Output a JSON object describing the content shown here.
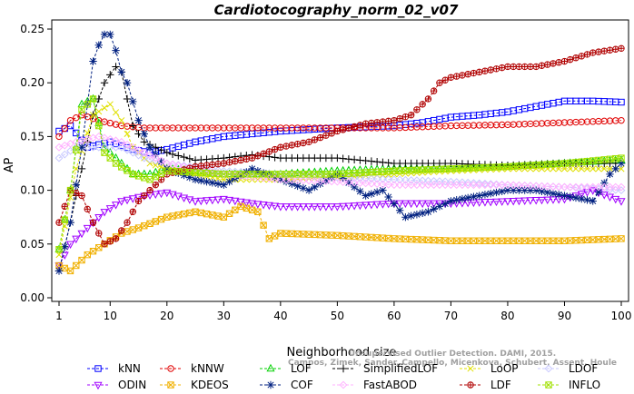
{
  "chart_data": {
    "type": "line",
    "title": "Cardiotocography_norm_02_v07",
    "xlabel": "Neighborhood size",
    "ylabel": "AP",
    "xlim": [
      1,
      100
    ],
    "ylim": [
      0.0,
      0.25
    ],
    "xticks": [
      "1",
      "10",
      "20",
      "30",
      "40",
      "50",
      "60",
      "70",
      "80",
      "90",
      "100"
    ],
    "yticks": [
      "0.00",
      "0.05",
      "0.10",
      "0.15",
      "0.20",
      "0.25"
    ],
    "grid": false,
    "legend_position": "bottom",
    "watermark": [
      "Campos, Zimek, Sander, Campello, Micenkova, Schubert, Assent, Houle",
      "Unsupervised Outlier Detection. DAMI, 2015."
    ],
    "series": [
      {
        "name": "kNN",
        "color": "#0000ff",
        "marker": "square",
        "points": [
          [
            1,
            0.155
          ],
          [
            3,
            0.16
          ],
          [
            6,
            0.14
          ],
          [
            10,
            0.145
          ],
          [
            14,
            0.138
          ],
          [
            17,
            0.135
          ],
          [
            20,
            0.138
          ],
          [
            25,
            0.145
          ],
          [
            30,
            0.15
          ],
          [
            40,
            0.155
          ],
          [
            50,
            0.158
          ],
          [
            60,
            0.16
          ],
          [
            65,
            0.163
          ],
          [
            70,
            0.168
          ],
          [
            75,
            0.17
          ],
          [
            80,
            0.173
          ],
          [
            85,
            0.178
          ],
          [
            90,
            0.183
          ],
          [
            95,
            0.183
          ],
          [
            100,
            0.182
          ]
        ]
      },
      {
        "name": "kNNW",
        "color": "#e00000",
        "marker": "circle",
        "points": [
          [
            1,
            0.15
          ],
          [
            3,
            0.165
          ],
          [
            5,
            0.17
          ],
          [
            8,
            0.165
          ],
          [
            12,
            0.16
          ],
          [
            16,
            0.158
          ],
          [
            20,
            0.158
          ],
          [
            30,
            0.158
          ],
          [
            40,
            0.158
          ],
          [
            50,
            0.158
          ],
          [
            60,
            0.158
          ],
          [
            70,
            0.16
          ],
          [
            80,
            0.161
          ],
          [
            90,
            0.163
          ],
          [
            100,
            0.165
          ]
        ]
      },
      {
        "name": "LOF",
        "color": "#00d000",
        "marker": "triangle",
        "points": [
          [
            1,
            0.045
          ],
          [
            3,
            0.1
          ],
          [
            5,
            0.18
          ],
          [
            7,
            0.185
          ],
          [
            9,
            0.14
          ],
          [
            11,
            0.13
          ],
          [
            14,
            0.115
          ],
          [
            17,
            0.115
          ],
          [
            20,
            0.12
          ],
          [
            25,
            0.118
          ],
          [
            30,
            0.115
          ],
          [
            40,
            0.115
          ],
          [
            50,
            0.118
          ],
          [
            60,
            0.12
          ],
          [
            70,
            0.12
          ],
          [
            80,
            0.122
          ],
          [
            90,
            0.125
          ],
          [
            100,
            0.128
          ]
        ]
      },
      {
        "name": "SimplifiedLOF",
        "color": "#000000",
        "marker": "plus",
        "points": [
          [
            1,
            0.025
          ],
          [
            3,
            0.07
          ],
          [
            5,
            0.12
          ],
          [
            7,
            0.17
          ],
          [
            9,
            0.2
          ],
          [
            11,
            0.215
          ],
          [
            12,
            0.21
          ],
          [
            14,
            0.16
          ],
          [
            16,
            0.145
          ],
          [
            18,
            0.14
          ],
          [
            20,
            0.135
          ],
          [
            25,
            0.128
          ],
          [
            30,
            0.13
          ],
          [
            35,
            0.133
          ],
          [
            40,
            0.13
          ],
          [
            50,
            0.13
          ],
          [
            60,
            0.125
          ],
          [
            70,
            0.125
          ],
          [
            80,
            0.123
          ],
          [
            90,
            0.125
          ],
          [
            100,
            0.125
          ]
        ]
      },
      {
        "name": "LoOP",
        "color": "#e0e000",
        "marker": "cross",
        "points": [
          [
            1,
            0.04
          ],
          [
            4,
            0.12
          ],
          [
            7,
            0.17
          ],
          [
            10,
            0.18
          ],
          [
            12,
            0.165
          ],
          [
            14,
            0.14
          ],
          [
            17,
            0.125
          ],
          [
            20,
            0.12
          ],
          [
            30,
            0.11
          ],
          [
            40,
            0.11
          ],
          [
            50,
            0.112
          ],
          [
            60,
            0.115
          ],
          [
            70,
            0.118
          ],
          [
            80,
            0.12
          ],
          [
            90,
            0.12
          ],
          [
            100,
            0.12
          ]
        ]
      },
      {
        "name": "LDOF",
        "color": "#c8c8ff",
        "marker": "diamond",
        "points": [
          [
            1,
            0.13
          ],
          [
            4,
            0.14
          ],
          [
            8,
            0.14
          ],
          [
            12,
            0.14
          ],
          [
            16,
            0.13
          ],
          [
            20,
            0.125
          ],
          [
            30,
            0.118
          ],
          [
            40,
            0.115
          ],
          [
            50,
            0.112
          ],
          [
            60,
            0.11
          ],
          [
            70,
            0.108
          ],
          [
            80,
            0.105
          ],
          [
            90,
            0.103
          ],
          [
            100,
            0.1
          ]
        ]
      },
      {
        "name": "ODIN",
        "color": "#a000ff",
        "marker": "triangle-down",
        "points": [
          [
            1,
            0.03
          ],
          [
            3,
            0.05
          ],
          [
            6,
            0.065
          ],
          [
            9,
            0.08
          ],
          [
            12,
            0.09
          ],
          [
            16,
            0.095
          ],
          [
            20,
            0.098
          ],
          [
            25,
            0.09
          ],
          [
            30,
            0.092
          ],
          [
            35,
            0.088
          ],
          [
            40,
            0.085
          ],
          [
            50,
            0.085
          ],
          [
            60,
            0.088
          ],
          [
            70,
            0.088
          ],
          [
            80,
            0.09
          ],
          [
            90,
            0.092
          ],
          [
            95,
            0.1
          ],
          [
            100,
            0.09
          ]
        ]
      },
      {
        "name": "KDEOS",
        "color": "#f0b000",
        "marker": "square-x",
        "points": [
          [
            1,
            0.03
          ],
          [
            3,
            0.025
          ],
          [
            6,
            0.04
          ],
          [
            9,
            0.05
          ],
          [
            12,
            0.06
          ],
          [
            15,
            0.065
          ],
          [
            20,
            0.075
          ],
          [
            25,
            0.08
          ],
          [
            30,
            0.075
          ],
          [
            33,
            0.085
          ],
          [
            36,
            0.08
          ],
          [
            38,
            0.055
          ],
          [
            40,
            0.06
          ],
          [
            50,
            0.058
          ],
          [
            60,
            0.055
          ],
          [
            70,
            0.053
          ],
          [
            80,
            0.053
          ],
          [
            90,
            0.053
          ],
          [
            100,
            0.055
          ]
        ]
      },
      {
        "name": "COF",
        "color": "#002080",
        "marker": "asterisk",
        "points": [
          [
            1,
            0.025
          ],
          [
            3,
            0.07
          ],
          [
            5,
            0.14
          ],
          [
            7,
            0.22
          ],
          [
            8,
            0.235
          ],
          [
            9,
            0.245
          ],
          [
            10,
            0.245
          ],
          [
            11,
            0.23
          ],
          [
            12,
            0.21
          ],
          [
            13,
            0.2
          ],
          [
            15,
            0.165
          ],
          [
            17,
            0.14
          ],
          [
            20,
            0.12
          ],
          [
            25,
            0.11
          ],
          [
            30,
            0.105
          ],
          [
            35,
            0.12
          ],
          [
            40,
            0.11
          ],
          [
            45,
            0.1
          ],
          [
            50,
            0.115
          ],
          [
            55,
            0.095
          ],
          [
            58,
            0.1
          ],
          [
            62,
            0.075
          ],
          [
            66,
            0.08
          ],
          [
            70,
            0.09
          ],
          [
            75,
            0.095
          ],
          [
            80,
            0.1
          ],
          [
            85,
            0.1
          ],
          [
            90,
            0.095
          ],
          [
            95,
            0.09
          ],
          [
            98,
            0.115
          ],
          [
            100,
            0.125
          ]
        ]
      },
      {
        "name": "FastABOD",
        "color": "#ffb0ff",
        "marker": "diamond",
        "points": [
          [
            1,
            0.14
          ],
          [
            4,
            0.145
          ],
          [
            8,
            0.15
          ],
          [
            12,
            0.145
          ],
          [
            16,
            0.135
          ],
          [
            20,
            0.125
          ],
          [
            30,
            0.115
          ],
          [
            40,
            0.11
          ],
          [
            50,
            0.108
          ],
          [
            60,
            0.105
          ],
          [
            70,
            0.105
          ],
          [
            80,
            0.105
          ],
          [
            90,
            0.103
          ],
          [
            100,
            0.103
          ]
        ]
      },
      {
        "name": "LDF",
        "color": "#b00000",
        "marker": "circle-plus",
        "points": [
          [
            1,
            0.07
          ],
          [
            3,
            0.1
          ],
          [
            5,
            0.095
          ],
          [
            7,
            0.07
          ],
          [
            9,
            0.05
          ],
          [
            11,
            0.055
          ],
          [
            13,
            0.07
          ],
          [
            15,
            0.09
          ],
          [
            17,
            0.1
          ],
          [
            20,
            0.115
          ],
          [
            25,
            0.122
          ],
          [
            30,
            0.125
          ],
          [
            35,
            0.13
          ],
          [
            40,
            0.14
          ],
          [
            45,
            0.145
          ],
          [
            50,
            0.155
          ],
          [
            55,
            0.162
          ],
          [
            60,
            0.165
          ],
          [
            63,
            0.17
          ],
          [
            66,
            0.185
          ],
          [
            68,
            0.2
          ],
          [
            70,
            0.205
          ],
          [
            75,
            0.21
          ],
          [
            80,
            0.215
          ],
          [
            85,
            0.215
          ],
          [
            90,
            0.22
          ],
          [
            95,
            0.228
          ],
          [
            100,
            0.232
          ]
        ]
      },
      {
        "name": "INFLO",
        "color": "#a0e000",
        "marker": "square-x",
        "points": [
          [
            1,
            0.045
          ],
          [
            3,
            0.1
          ],
          [
            5,
            0.175
          ],
          [
            7,
            0.185
          ],
          [
            9,
            0.135
          ],
          [
            11,
            0.125
          ],
          [
            14,
            0.115
          ],
          [
            17,
            0.11
          ],
          [
            20,
            0.118
          ],
          [
            30,
            0.115
          ],
          [
            40,
            0.115
          ],
          [
            50,
            0.115
          ],
          [
            60,
            0.118
          ],
          [
            70,
            0.12
          ],
          [
            80,
            0.122
          ],
          [
            90,
            0.125
          ],
          [
            100,
            0.13
          ]
        ]
      }
    ]
  }
}
